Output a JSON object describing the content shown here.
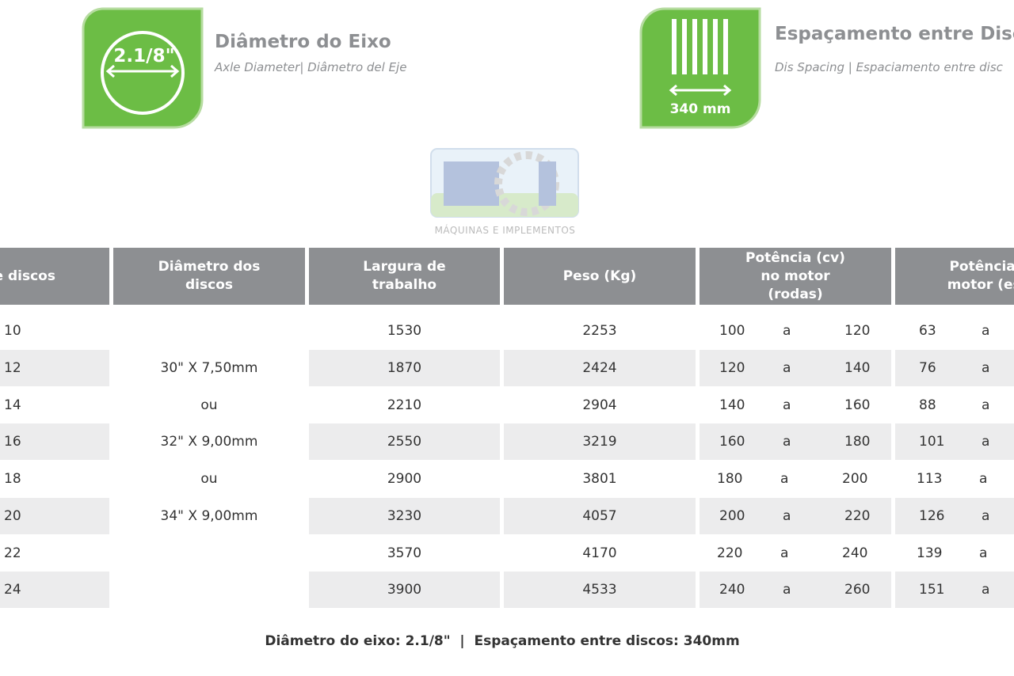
{
  "header": {
    "axle": {
      "icon_label": "2.1/8\"",
      "title": "Diâmetro do Eixo",
      "subtitle": "Axle Diameter|  Diâmetro del Eje"
    },
    "spacing": {
      "icon_label": "340 mm",
      "title": "Espaçamento entre Disc",
      "subtitle": "Dis Spacing | Espaciamento entre disc"
    }
  },
  "logo": {
    "tagline": "MÁQUINAS E IMPLEMENTOS"
  },
  "table": {
    "headers": [
      "e discos",
      "Diâmetro dos discos",
      "Largura de trabalho",
      "Peso (Kg)",
      "Potência (cv) no motor (rodas)",
      "Potência (c motor (este"
    ],
    "disc_diameter": [
      "30\" X 7,50mm",
      "ou",
      "32\" X 9,00mm",
      "ou",
      "34\" X 9,00mm"
    ],
    "rows": [
      [
        10,
        1530,
        2253,
        100,
        "a",
        120,
        63,
        "a"
      ],
      [
        12,
        1870,
        2424,
        120,
        "a",
        140,
        76,
        "a"
      ],
      [
        14,
        2210,
        2904,
        140,
        "a",
        160,
        88,
        "a"
      ],
      [
        16,
        2550,
        3219,
        160,
        "a",
        180,
        101,
        "a"
      ],
      [
        18,
        2900,
        3801,
        180,
        "a",
        200,
        113,
        "a"
      ],
      [
        20,
        3230,
        4057,
        200,
        "a",
        220,
        126,
        "a"
      ],
      [
        22,
        3570,
        4170,
        220,
        "a",
        240,
        139,
        "a"
      ],
      [
        24,
        3900,
        4533,
        240,
        "a",
        260,
        151,
        "a"
      ]
    ]
  },
  "footer": "Diâmetro do eixo: 2.1/8\"  |  Espaçamento entre discos: 340mm"
}
